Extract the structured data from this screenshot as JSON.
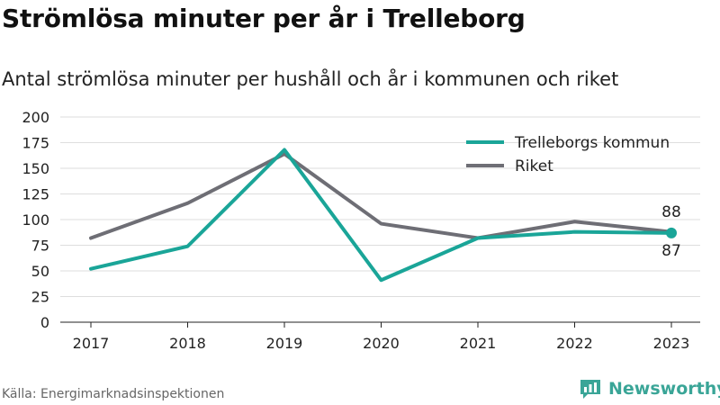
{
  "title": "Strömlösa minuter per år i Trelleborg",
  "subtitle": "Antal strömlösa minuter per hushåll och år i kommunen och riket",
  "source": "Källa: Energimarknadsinspektionen",
  "brand": {
    "name": "Newsworthy",
    "icon": "newsworthy-logo-icon",
    "color": "#3aa597"
  },
  "chart_data": {
    "type": "line",
    "title": "Strömlösa minuter per år i Trelleborg",
    "subtitle": "Antal strömlösa minuter per hushåll och år i kommunen och riket",
    "xlabel": "",
    "ylabel": "",
    "x": [
      "2017",
      "2018",
      "2019",
      "2020",
      "2021",
      "2022",
      "2023"
    ],
    "ylim": [
      0,
      200
    ],
    "yticks": [
      "0",
      "25",
      "50",
      "75",
      "100",
      "125",
      "150",
      "175",
      "200"
    ],
    "grid": true,
    "legend_position": "top-right",
    "series": [
      {
        "name": "Trelleborgs kommun",
        "color": "#1aa598",
        "values": [
          52,
          74,
          168,
          41,
          82,
          88,
          87
        ]
      },
      {
        "name": "Riket",
        "color": "#6e6e75",
        "values": [
          82,
          116,
          164,
          96,
          82,
          98,
          88
        ]
      }
    ],
    "end_labels": {
      "kommun": "87",
      "riket": "88"
    }
  }
}
